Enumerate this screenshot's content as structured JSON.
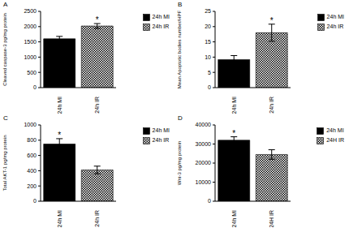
{
  "chart_data": [
    {
      "type": "bar",
      "title": "A",
      "y_label": "Cleaved caspase-3 pg/mg protein",
      "categories": [
        "24h MI",
        "24h IR"
      ],
      "values": [
        1600,
        2020
      ],
      "errors": [
        80,
        80
      ],
      "colors": [
        "#000000",
        "#000000"
      ],
      "ylim": [
        0,
        2500
      ],
      "yticks": [
        0,
        500,
        1000,
        1500,
        2000,
        2500
      ],
      "legend": "top-right",
      "annotations": [
        {
          "text": "*",
          "category": "24h IR"
        }
      ]
    },
    {
      "type": "bar",
      "title": "B",
      "y_label": "Mean Apoptotic bodies number/HPF",
      "categories": [
        "24h MI",
        "24h IR"
      ],
      "values": [
        9.2,
        18
      ],
      "errors": [
        1.3,
        2.8
      ],
      "colors": [
        "#000000",
        "#000000"
      ],
      "ylim": [
        0,
        25
      ],
      "yticks": [
        0,
        5,
        10,
        15,
        20,
        25
      ],
      "legend": "top-right",
      "annotations": [
        {
          "text": "*",
          "category": "24h IR"
        }
      ]
    },
    {
      "type": "bar",
      "title": "C",
      "y_label": "Total AKT-1 pg/mg protein",
      "categories": [
        "24h MI",
        "24h IR"
      ],
      "values": [
        750,
        410
      ],
      "errors": [
        70,
        50
      ],
      "colors": [
        "#000000",
        "#000000"
      ],
      "ylim": [
        0,
        1000
      ],
      "yticks": [
        0,
        200,
        400,
        600,
        800,
        1000
      ],
      "legend": "top-right",
      "annotations": [
        {
          "text": "*",
          "category": "24h MI"
        }
      ]
    },
    {
      "type": "bar",
      "title": "D",
      "y_label": "Wnt-3 pg/mg protein",
      "categories": [
        "24h MI",
        "24H IR"
      ],
      "values": [
        32000,
        24500
      ],
      "errors": [
        1800,
        2500
      ],
      "colors": [
        "#000000",
        "#000000"
      ],
      "ylim": [
        0,
        40000
      ],
      "yticks": [
        0,
        10000,
        20000,
        30000,
        40000
      ],
      "legend": "top-right",
      "annotations": [
        {
          "text": "*",
          "category": "24h MI"
        }
      ]
    }
  ]
}
